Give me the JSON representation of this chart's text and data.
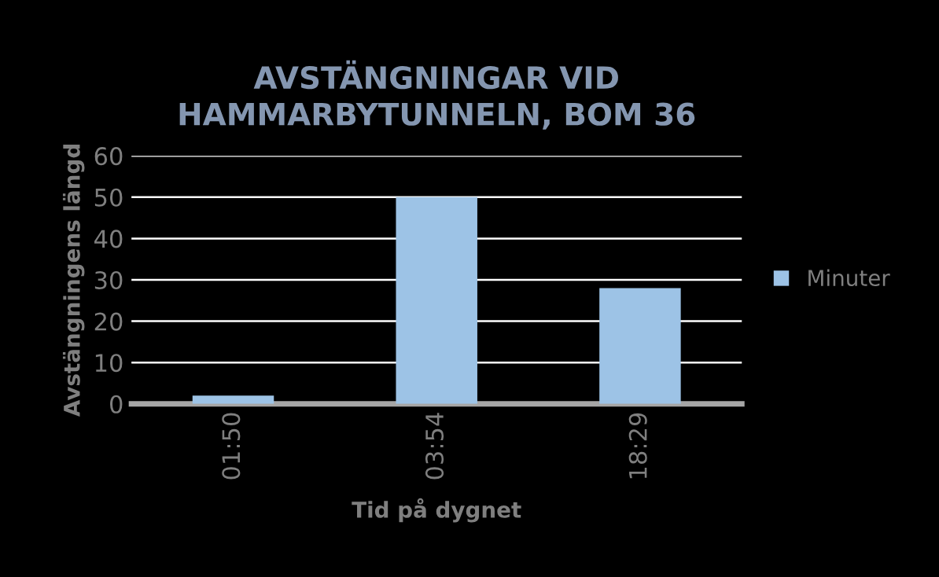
{
  "chart_data": {
    "type": "bar",
    "title": "AVSTÄNGNINGAR VID\nHAMMARBYTUNNELN, BOM 36",
    "xlabel": "Tid på dygnet",
    "ylabel": "Avstängningens längd",
    "categories": [
      "01:50",
      "03:54",
      "18:29"
    ],
    "series": [
      {
        "name": "Minuter",
        "color": "#9dc3e6",
        "values": [
          2,
          50,
          28
        ]
      }
    ],
    "ylim": [
      0,
      60
    ],
    "yticks": [
      0,
      10,
      20,
      30,
      40,
      50,
      60
    ],
    "grid": "y",
    "legend": "right"
  }
}
